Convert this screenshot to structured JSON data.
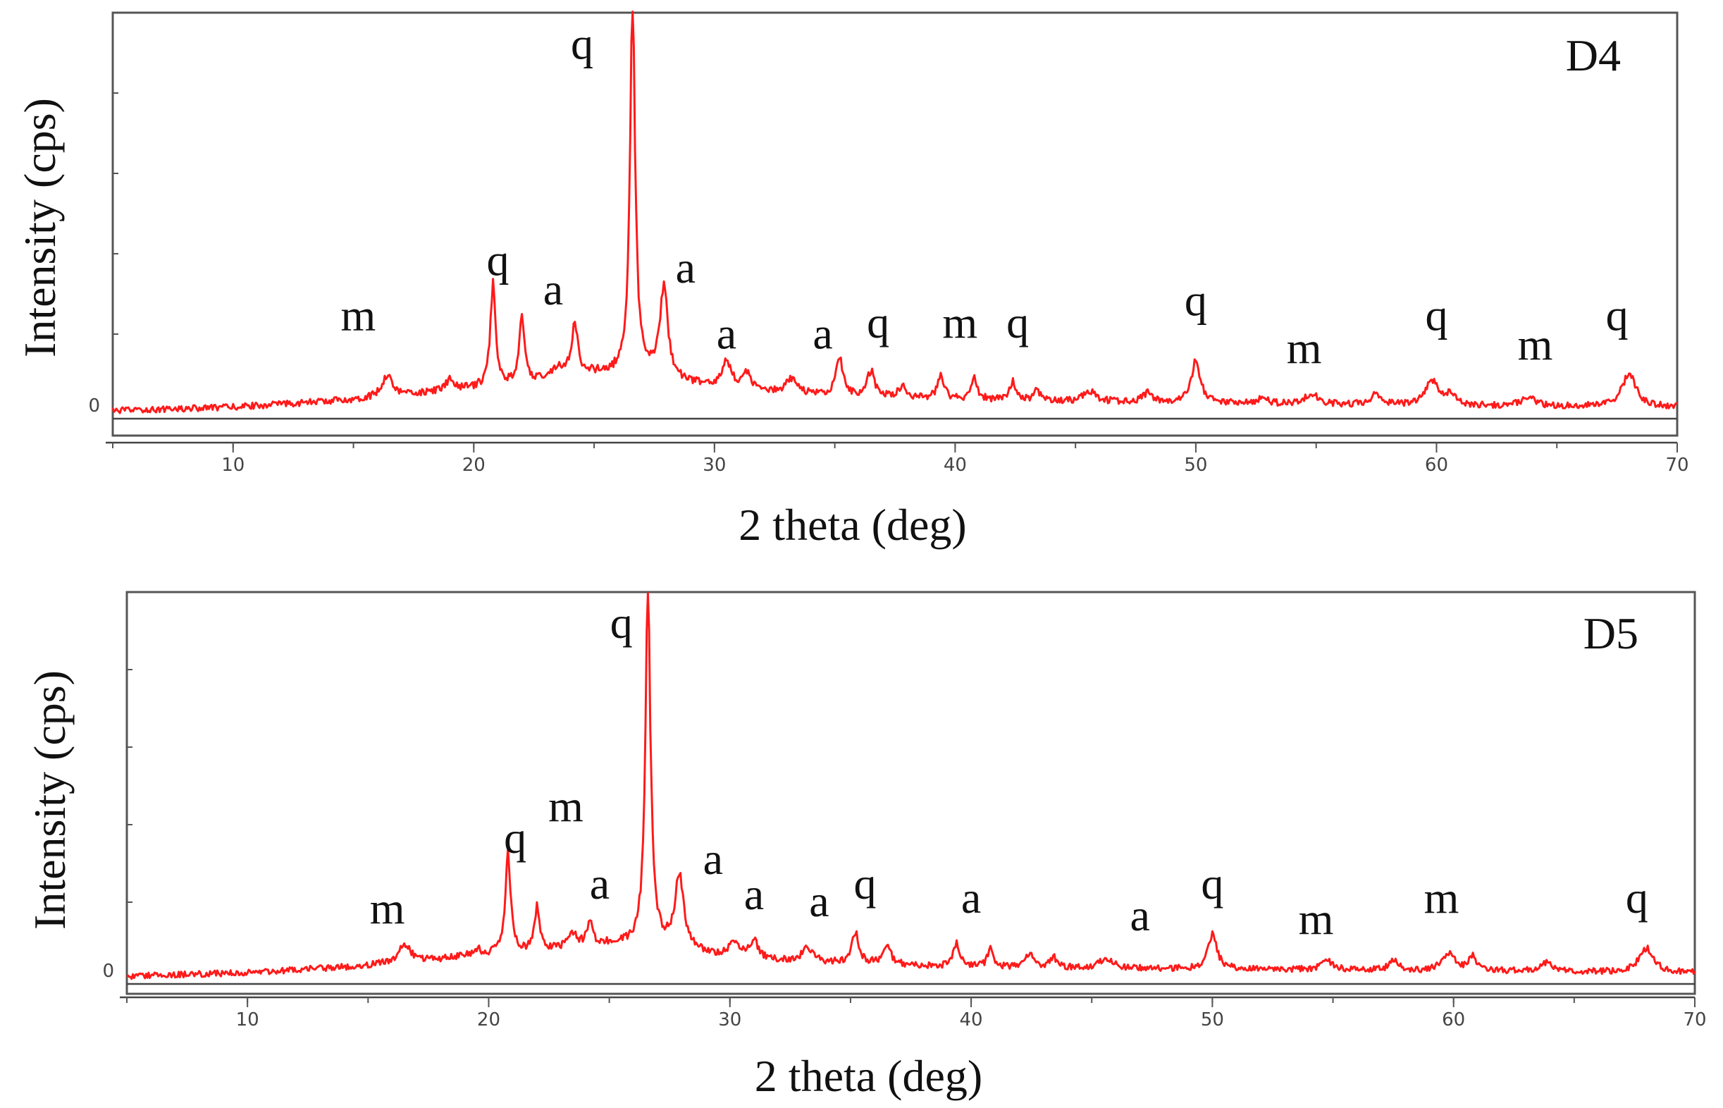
{
  "chart_data": [
    {
      "type": "line",
      "panel_label": "D4",
      "xlabel": "2 theta (deg)",
      "ylabel": "Intensity (cps)",
      "xlim": [
        5,
        70
      ],
      "ylim": [
        0,
        100
      ],
      "x_ticks": [
        10,
        20,
        30,
        40,
        50,
        60,
        70
      ],
      "y_tick_labels": [
        "0"
      ],
      "color": "#ff1a1a",
      "baseline": [
        [
          5,
          1
        ],
        [
          10,
          2
        ],
        [
          15,
          4
        ],
        [
          20,
          7
        ],
        [
          25,
          11
        ],
        [
          27,
          11
        ],
        [
          30,
          7
        ],
        [
          35,
          5
        ],
        [
          40,
          4
        ],
        [
          50,
          3
        ],
        [
          60,
          2.5
        ],
        [
          70,
          2
        ]
      ],
      "peaks": [
        {
          "x": 16.4,
          "y": 6,
          "w": 0.25
        },
        {
          "x": 19.0,
          "y": 3,
          "w": 0.2
        },
        {
          "x": 20.8,
          "y": 28,
          "w": 0.13
        },
        {
          "x": 22.0,
          "y": 18,
          "w": 0.12
        },
        {
          "x": 23.5,
          "y": 3,
          "w": 0.3
        },
        {
          "x": 24.2,
          "y": 14,
          "w": 0.15
        },
        {
          "x": 26.6,
          "y": 100,
          "w": 0.13
        },
        {
          "x": 27.9,
          "y": 24,
          "w": 0.2
        },
        {
          "x": 30.5,
          "y": 7,
          "w": 0.25
        },
        {
          "x": 31.3,
          "y": 5,
          "w": 0.2
        },
        {
          "x": 33.2,
          "y": 4,
          "w": 0.25
        },
        {
          "x": 35.2,
          "y": 10,
          "w": 0.18
        },
        {
          "x": 36.5,
          "y": 7,
          "w": 0.18
        },
        {
          "x": 37.8,
          "y": 3,
          "w": 0.2
        },
        {
          "x": 39.4,
          "y": 7,
          "w": 0.15
        },
        {
          "x": 40.8,
          "y": 6,
          "w": 0.15
        },
        {
          "x": 42.4,
          "y": 5,
          "w": 0.15
        },
        {
          "x": 43.4,
          "y": 3,
          "w": 0.15
        },
        {
          "x": 45.6,
          "y": 3,
          "w": 0.3
        },
        {
          "x": 48.0,
          "y": 2.5,
          "w": 0.25
        },
        {
          "x": 50.0,
          "y": 12,
          "w": 0.22
        },
        {
          "x": 52.8,
          "y": 2,
          "w": 0.2
        },
        {
          "x": 54.8,
          "y": 3,
          "w": 0.3
        },
        {
          "x": 57.5,
          "y": 3,
          "w": 0.2
        },
        {
          "x": 59.8,
          "y": 7,
          "w": 0.3
        },
        {
          "x": 60.6,
          "y": 3,
          "w": 0.2
        },
        {
          "x": 63.8,
          "y": 2.5,
          "w": 0.3
        },
        {
          "x": 68.0,
          "y": 9,
          "w": 0.35
        }
      ],
      "annotations": [
        {
          "text": "m",
          "x": 15.2,
          "y": 23
        },
        {
          "text": "q",
          "x": 21.0,
          "y": 38
        },
        {
          "text": "a",
          "x": 23.3,
          "y": 30
        },
        {
          "text": "q",
          "x": 24.5,
          "y": 97
        },
        {
          "text": "a",
          "x": 28.8,
          "y": 36
        },
        {
          "text": "a",
          "x": 30.5,
          "y": 18
        },
        {
          "text": "a",
          "x": 34.5,
          "y": 18
        },
        {
          "text": "q",
          "x": 36.8,
          "y": 21
        },
        {
          "text": "m",
          "x": 40.2,
          "y": 21
        },
        {
          "text": "q",
          "x": 42.6,
          "y": 21
        },
        {
          "text": "q",
          "x": 50.0,
          "y": 27
        },
        {
          "text": "m",
          "x": 54.5,
          "y": 14
        },
        {
          "text": "q",
          "x": 60.0,
          "y": 23
        },
        {
          "text": "m",
          "x": 64.1,
          "y": 15
        },
        {
          "text": "q",
          "x": 67.5,
          "y": 23
        }
      ]
    },
    {
      "type": "line",
      "panel_label": "D5",
      "xlabel": "2 theta (deg)",
      "ylabel": "Intensity (cps)",
      "xlim": [
        5,
        70
      ],
      "ylim": [
        0,
        100
      ],
      "x_ticks": [
        10,
        20,
        30,
        40,
        50,
        60,
        70
      ],
      "y_tick_labels": [
        "0"
      ],
      "color": "#ff1a1a",
      "baseline": [
        [
          5,
          1
        ],
        [
          10,
          2
        ],
        [
          15,
          4
        ],
        [
          20,
          7
        ],
        [
          25,
          10
        ],
        [
          27,
          10
        ],
        [
          30,
          6
        ],
        [
          35,
          4.5
        ],
        [
          40,
          3.5
        ],
        [
          50,
          3
        ],
        [
          60,
          2.5
        ],
        [
          70,
          2
        ]
      ],
      "peaks": [
        {
          "x": 16.5,
          "y": 5,
          "w": 0.3
        },
        {
          "x": 19.5,
          "y": 2,
          "w": 0.2
        },
        {
          "x": 20.8,
          "y": 28,
          "w": 0.13
        },
        {
          "x": 22.0,
          "y": 12,
          "w": 0.12
        },
        {
          "x": 23.5,
          "y": 4,
          "w": 0.2
        },
        {
          "x": 24.2,
          "y": 6,
          "w": 0.15
        },
        {
          "x": 26.6,
          "y": 100,
          "w": 0.13
        },
        {
          "x": 27.9,
          "y": 20,
          "w": 0.22
        },
        {
          "x": 30.2,
          "y": 5,
          "w": 0.25
        },
        {
          "x": 31.0,
          "y": 5,
          "w": 0.2
        },
        {
          "x": 33.2,
          "y": 4,
          "w": 0.25
        },
        {
          "x": 35.2,
          "y": 9,
          "w": 0.18
        },
        {
          "x": 36.5,
          "y": 6,
          "w": 0.18
        },
        {
          "x": 39.4,
          "y": 7,
          "w": 0.15
        },
        {
          "x": 40.8,
          "y": 5,
          "w": 0.15
        },
        {
          "x": 42.4,
          "y": 4,
          "w": 0.2
        },
        {
          "x": 43.4,
          "y": 3,
          "w": 0.15
        },
        {
          "x": 45.6,
          "y": 3,
          "w": 0.3
        },
        {
          "x": 50.0,
          "y": 10,
          "w": 0.22
        },
        {
          "x": 54.8,
          "y": 2.5,
          "w": 0.3
        },
        {
          "x": 57.5,
          "y": 3,
          "w": 0.2
        },
        {
          "x": 59.8,
          "y": 5,
          "w": 0.3
        },
        {
          "x": 60.8,
          "y": 4,
          "w": 0.2
        },
        {
          "x": 63.8,
          "y": 2.5,
          "w": 0.3
        },
        {
          "x": 68.0,
          "y": 7,
          "w": 0.35
        }
      ],
      "annotations": [
        {
          "text": "m",
          "x": 15.8,
          "y": 16
        },
        {
          "text": "q",
          "x": 21.1,
          "y": 36
        },
        {
          "text": "m",
          "x": 23.2,
          "y": 45
        },
        {
          "text": "a",
          "x": 24.6,
          "y": 23
        },
        {
          "text": "q",
          "x": 25.5,
          "y": 97
        },
        {
          "text": "a",
          "x": 29.3,
          "y": 30
        },
        {
          "text": "a",
          "x": 31.0,
          "y": 20
        },
        {
          "text": "a",
          "x": 33.7,
          "y": 18
        },
        {
          "text": "q",
          "x": 35.6,
          "y": 23
        },
        {
          "text": "a",
          "x": 40.0,
          "y": 19
        },
        {
          "text": "a",
          "x": 47.0,
          "y": 14
        },
        {
          "text": "q",
          "x": 50.0,
          "y": 23
        },
        {
          "text": "m",
          "x": 54.3,
          "y": 13
        },
        {
          "text": "m",
          "x": 59.5,
          "y": 19
        },
        {
          "text": "q",
          "x": 67.6,
          "y": 19
        }
      ]
    }
  ]
}
